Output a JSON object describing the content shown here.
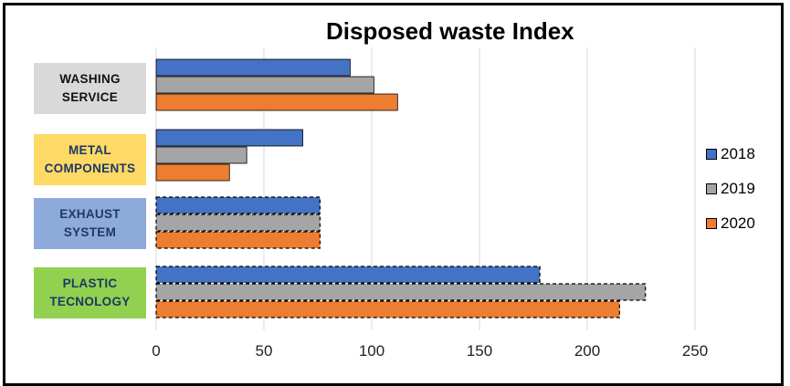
{
  "chart_data": {
    "type": "bar",
    "orientation": "horizontal",
    "title": "Disposed waste Index",
    "categories": [
      "WASHING\nSERVICE",
      "METAL\nCOMPONENTS",
      "EXHAUST\nSYSTEM",
      "PLASTIC\nTECNOLOGY"
    ],
    "series": [
      {
        "name": "2018",
        "color": "#4472c4",
        "values": [
          90,
          68,
          76,
          178
        ]
      },
      {
        "name": "2019",
        "color": "#a5a5a5",
        "values": [
          101,
          42,
          76,
          227
        ]
      },
      {
        "name": "2020",
        "color": "#ed7d31",
        "values": [
          112,
          34,
          76,
          215
        ]
      }
    ],
    "dashed_categories": [
      "EXHAUST\nSYSTEM",
      "PLASTIC\nTECNOLOGY"
    ],
    "xlim": [
      0,
      250
    ],
    "xticks": [
      "0",
      "50",
      "100",
      "150",
      "200",
      "250"
    ],
    "grid": true,
    "legend_position": "right"
  }
}
